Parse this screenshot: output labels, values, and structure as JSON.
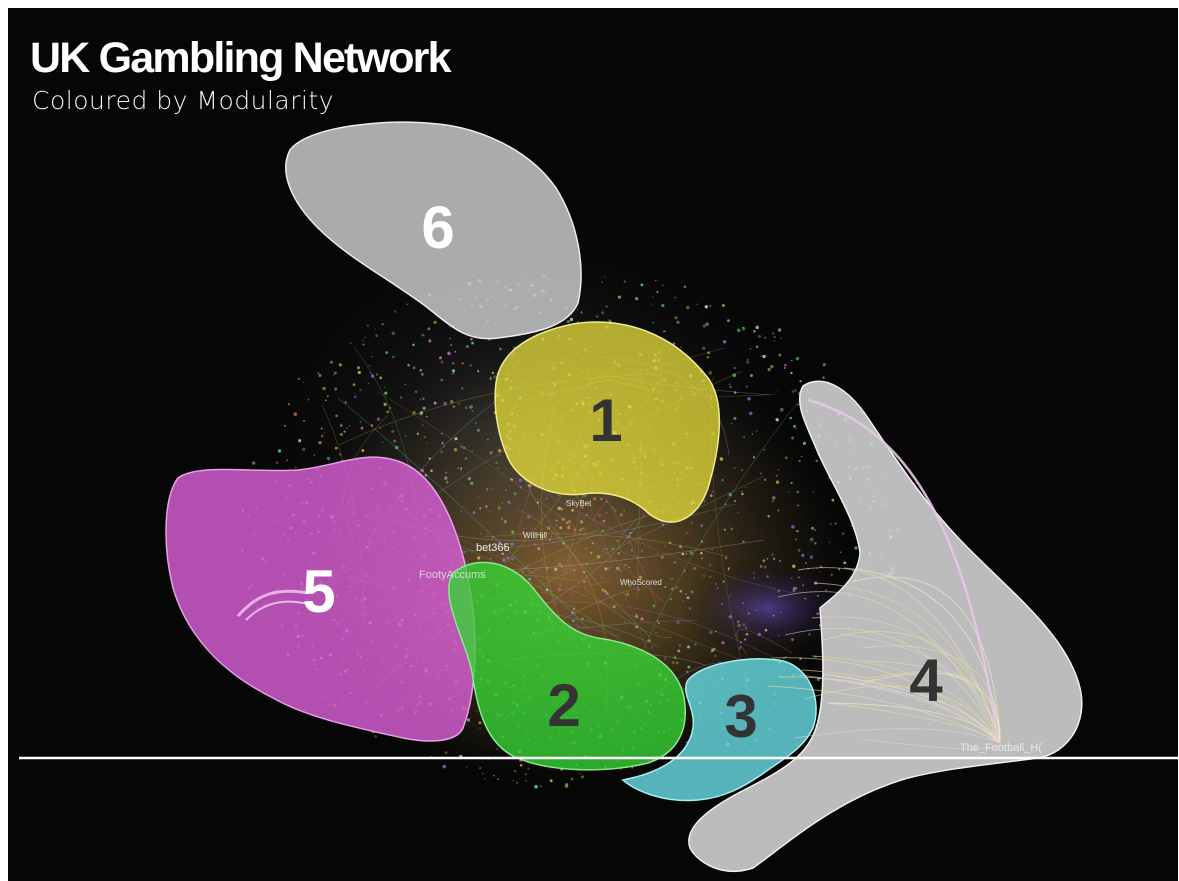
{
  "title": "UK Gambling Network",
  "subtitle": "Coloured by Modularity",
  "communities": [
    {
      "id": "1",
      "color": "#e2d83a",
      "number_color": "#333333"
    },
    {
      "id": "2",
      "color": "#37d235",
      "number_color": "#333333"
    },
    {
      "id": "3",
      "color": "#66d9e0",
      "number_color": "#333333"
    },
    {
      "id": "4",
      "color": "#d6d6d6",
      "number_color": "#333333"
    },
    {
      "id": "5",
      "color": "#d95fd6",
      "number_color": "#ffffff"
    },
    {
      "id": "6",
      "color": "#cfcfcf",
      "number_color": "#ffffff"
    }
  ],
  "node_labels": {
    "bet365": "bet365",
    "footyaccums": "FootyAccums",
    "the_football_hq": "The_Football_H(",
    "willhill": "WillHill",
    "whoscored": "WhoScored",
    "skybet": "SkyBet"
  }
}
